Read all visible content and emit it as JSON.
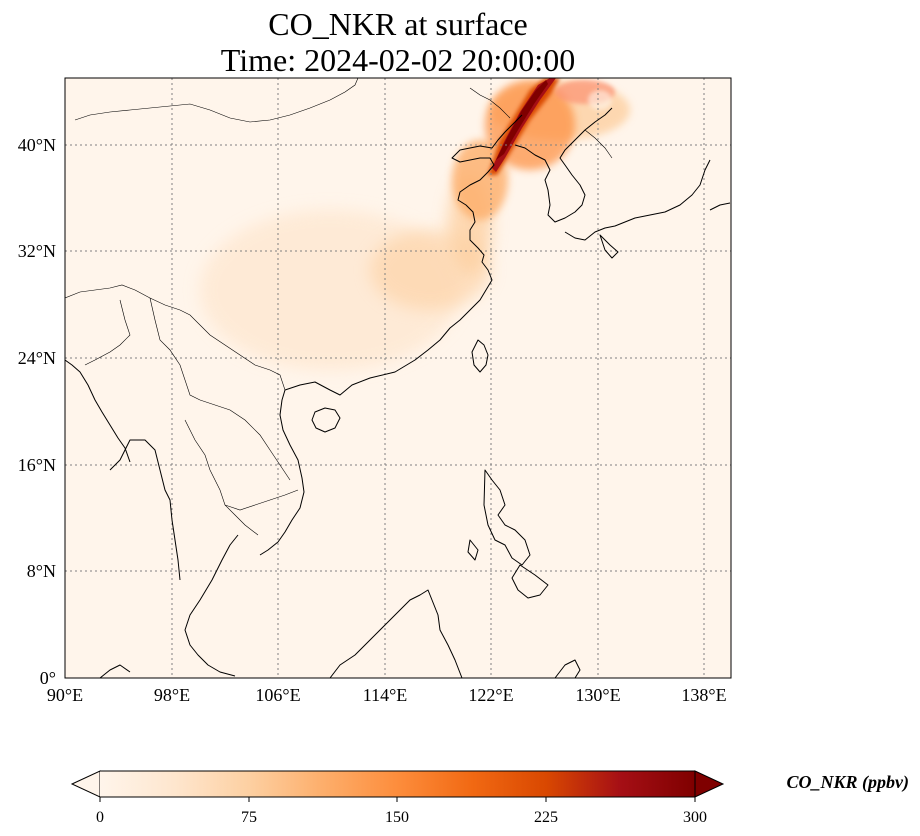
{
  "title": {
    "line1": "CO_NKR at surface",
    "line2": "Time: 2024-02-02 20:00:00"
  },
  "map": {
    "projection": "PlateCarree",
    "lon_range": [
      90,
      140
    ],
    "lat_range": [
      0,
      45
    ],
    "lon_ticks": [
      90,
      98,
      106,
      114,
      122,
      130,
      138
    ],
    "lat_ticks": [
      0,
      8,
      16,
      24,
      32,
      40
    ],
    "lon_tick_labels": [
      "90°E",
      "98°E",
      "106°E",
      "114°E",
      "122°E",
      "130°E",
      "138°E"
    ],
    "lat_tick_labels": [
      "0°",
      "8°N",
      "16°N",
      "24°N",
      "32°N",
      "40°N"
    ],
    "gridlines": "dotted gray",
    "coastlines": true,
    "borders": true,
    "background_color": "#fff5eb"
  },
  "colorbar": {
    "label": "CO_NKR (ppbv)",
    "cmap": "OrRd",
    "vmin": 0,
    "vmax": 300,
    "ticks": [
      0,
      75,
      150,
      225,
      300
    ],
    "tick_labels": [
      "0",
      "75",
      "150",
      "225",
      "300"
    ],
    "extend": "both",
    "orientation": "horizontal",
    "colors": [
      "#fff5eb",
      "#fee6ce",
      "#fdd0a2",
      "#fdae6b",
      "#fd8d3c",
      "#f16913",
      "#d94801",
      "#a50f15",
      "#7f0000"
    ]
  },
  "plume": {
    "description_level": "high CO concentrations (>300 ppbv) over Northeast China / Liaoning, moderate (~30-100 ppbv) along North China Plain and east coast"
  }
}
